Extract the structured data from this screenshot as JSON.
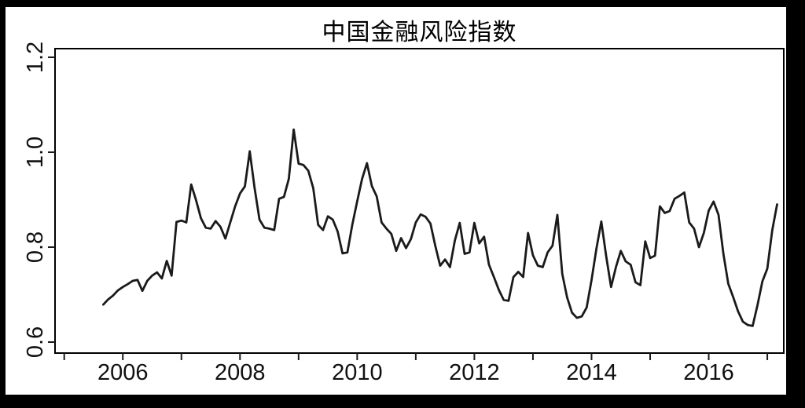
{
  "title": "中国金融风险指数",
  "chart_data": {
    "type": "line",
    "title": "中国金融风险指数",
    "xlabel": "",
    "ylabel": "",
    "background": "#ffffff",
    "frame_color": "#000000",
    "axis_color": "#1a1a1a",
    "line_color": "#1a1a1a",
    "grid": false,
    "legend": false,
    "ylim": [
      0.58,
      1.22
    ],
    "xlim_years": [
      2004.8,
      2017.3
    ],
    "y_ticks": [
      {
        "value": 0.6,
        "text": "0.6"
      },
      {
        "value": 0.8,
        "text": "0.8"
      },
      {
        "value": 1.0,
        "text": "1.0"
      },
      {
        "value": 1.2,
        "text": "1.2"
      }
    ],
    "x_ticks": [
      {
        "year": 2005,
        "label": ""
      },
      {
        "year": 2006,
        "label": "2006"
      },
      {
        "year": 2007,
        "label": ""
      },
      {
        "year": 2008,
        "label": "2008"
      },
      {
        "year": 2009,
        "label": ""
      },
      {
        "year": 2010,
        "label": "2010"
      },
      {
        "year": 2011,
        "label": ""
      },
      {
        "year": 2012,
        "label": "2012"
      },
      {
        "year": 2013,
        "label": ""
      },
      {
        "year": 2014,
        "label": "2014"
      },
      {
        "year": 2015,
        "label": ""
      },
      {
        "year": 2016,
        "label": "2016"
      },
      {
        "year": 2017,
        "label": ""
      }
    ],
    "series": [
      {
        "name": "中国金融风险指数",
        "frequency": "monthly",
        "start_year": 2005,
        "start_month": 9,
        "values": [
          0.679,
          0.69,
          0.698,
          0.709,
          0.716,
          0.722,
          0.729,
          0.731,
          0.708,
          0.729,
          0.74,
          0.747,
          0.734,
          0.771,
          0.74,
          0.853,
          0.856,
          0.852,
          0.932,
          0.899,
          0.861,
          0.841,
          0.839,
          0.855,
          0.843,
          0.818,
          0.852,
          0.886,
          0.913,
          0.928,
          1.002,
          0.924,
          0.858,
          0.841,
          0.839,
          0.836,
          0.902,
          0.906,
          0.944,
          1.048,
          0.976,
          0.973,
          0.961,
          0.924,
          0.847,
          0.836,
          0.865,
          0.858,
          0.833,
          0.787,
          0.789,
          0.847,
          0.896,
          0.944,
          0.977,
          0.929,
          0.907,
          0.852,
          0.839,
          0.828,
          0.792,
          0.819,
          0.798,
          0.817,
          0.852,
          0.869,
          0.864,
          0.85,
          0.803,
          0.761,
          0.774,
          0.758,
          0.814,
          0.851,
          0.786,
          0.789,
          0.851,
          0.808,
          0.822,
          0.763,
          0.737,
          0.71,
          0.689,
          0.687,
          0.737,
          0.748,
          0.737,
          0.83,
          0.783,
          0.761,
          0.758,
          0.789,
          0.803,
          0.868,
          0.744,
          0.694,
          0.662,
          0.651,
          0.654,
          0.673,
          0.731,
          0.797,
          0.854,
          0.781,
          0.716,
          0.758,
          0.792,
          0.77,
          0.763,
          0.726,
          0.72,
          0.812,
          0.777,
          0.782,
          0.886,
          0.872,
          0.876,
          0.902,
          0.908,
          0.915,
          0.852,
          0.839,
          0.8,
          0.83,
          0.877,
          0.896,
          0.868,
          0.786,
          0.723,
          0.695,
          0.665,
          0.643,
          0.636,
          0.634,
          0.678,
          0.728,
          0.755,
          0.835,
          0.89
        ]
      }
    ]
  }
}
